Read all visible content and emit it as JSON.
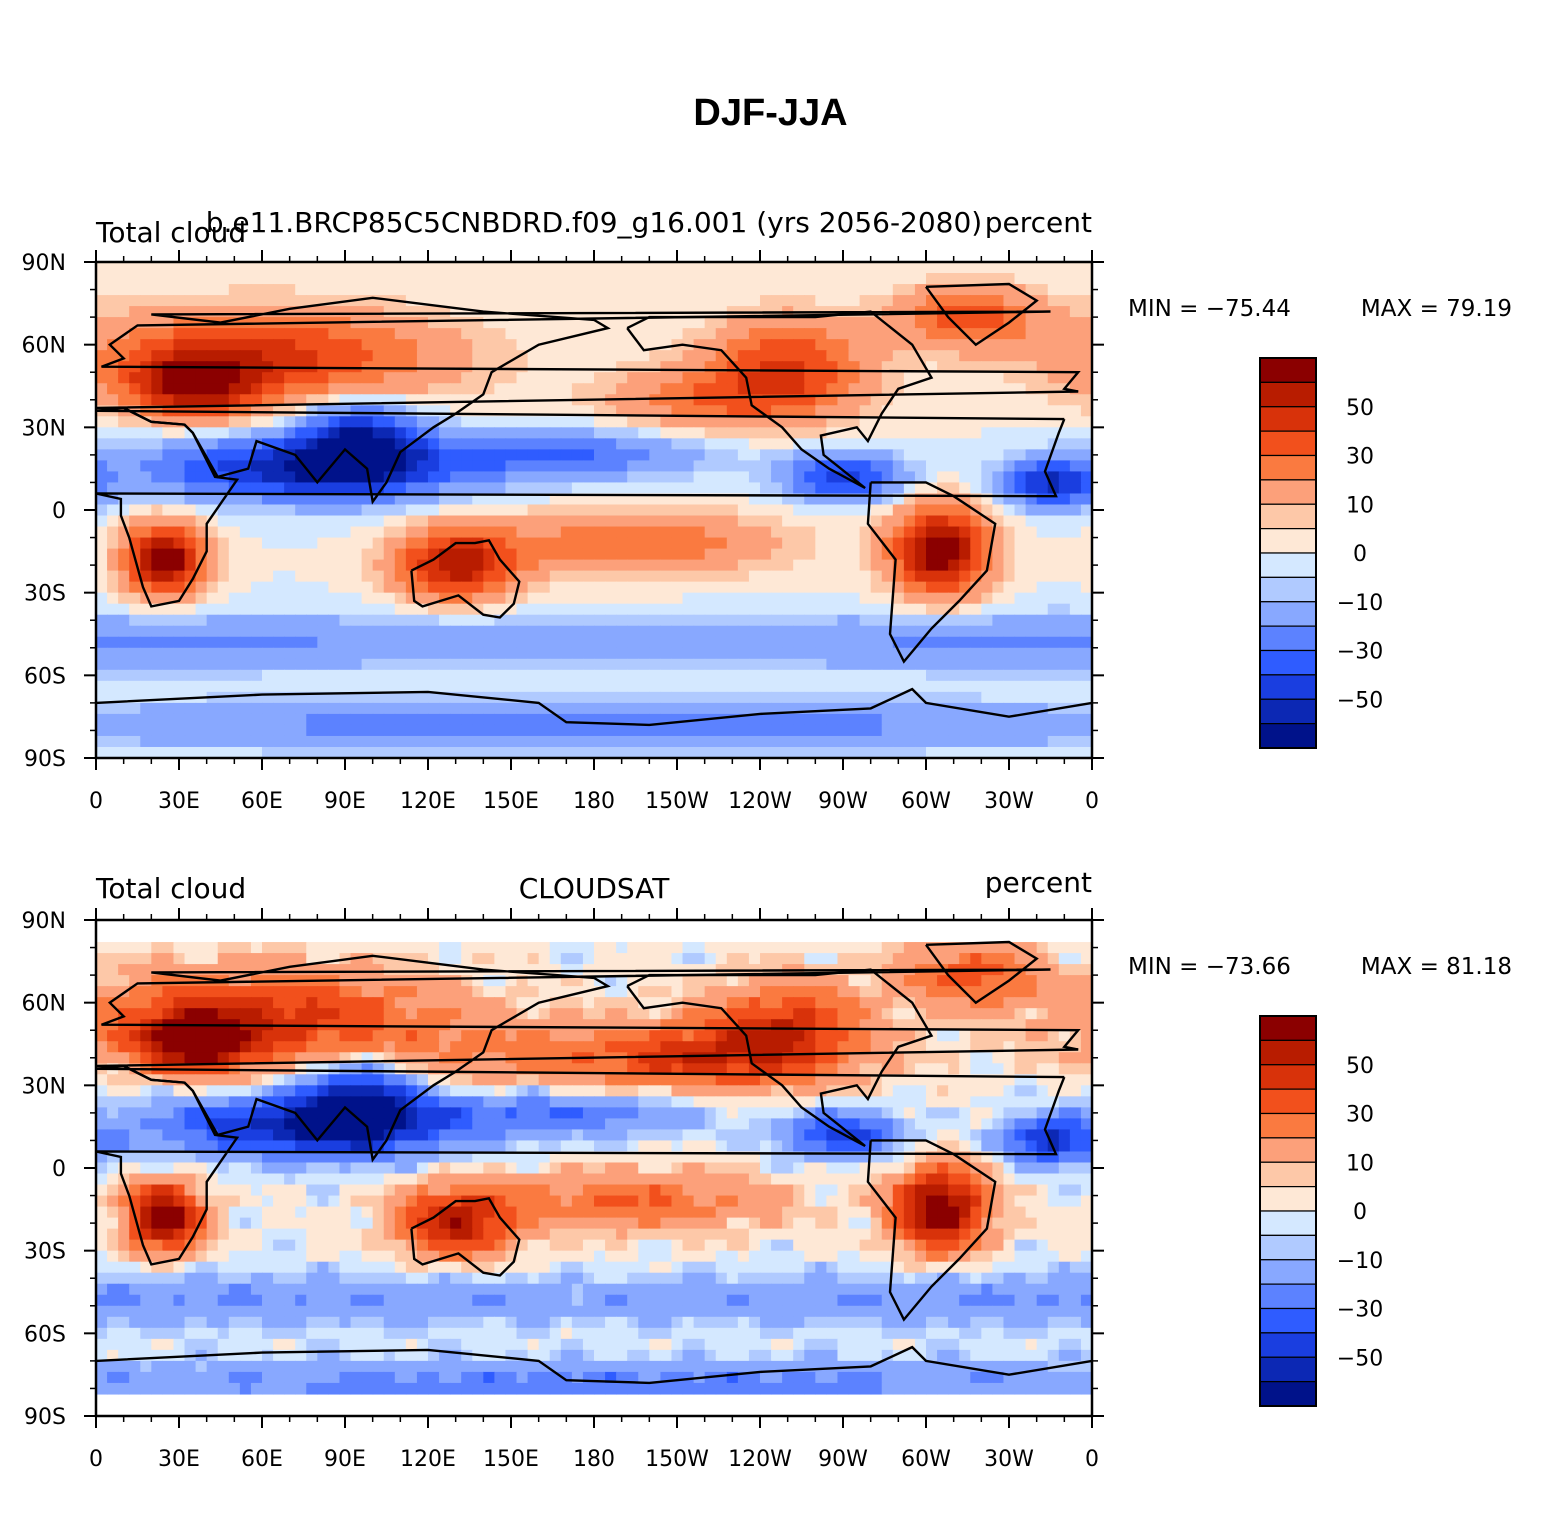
{
  "title": "DJF-JJA",
  "panels": [
    {
      "left_label": "Total cloud",
      "center_label": "b.e11.BRCP85C5CNBDRD.f09_g16.001 (yrs 2056-2080)",
      "right_label": "percent",
      "min_label": "MIN = −75.44",
      "max_label": "MAX =   79.19",
      "variant": "model"
    },
    {
      "left_label": "Total cloud",
      "center_label": "CLOUDSAT",
      "right_label": "percent",
      "min_label": "MIN = −73.66",
      "max_label": "MAX =   81.18",
      "variant": "obs"
    }
  ],
  "axes": {
    "lat_ticks": [
      "90N",
      "60N",
      "30N",
      "0",
      "30S",
      "60S",
      "90S"
    ],
    "lon_ticks": [
      "0",
      "30E",
      "60E",
      "90E",
      "120E",
      "150E",
      "180",
      "150W",
      "120W",
      "90W",
      "60W",
      "30W",
      "0"
    ]
  },
  "colorbar": {
    "labels": [
      "50",
      "30",
      "10",
      "0",
      "−10",
      "−30",
      "−50"
    ],
    "colors": [
      "#8b0000",
      "#b81c00",
      "#d8320a",
      "#f2501c",
      "#fa7a40",
      "#fca07a",
      "#fdc8a8",
      "#fee8d6",
      "#d4e8ff",
      "#b0caff",
      "#88a8ff",
      "#5c82ff",
      "#2f5cff",
      "#1a3ee0",
      "#0c28b4",
      "#00128a"
    ]
  }
}
